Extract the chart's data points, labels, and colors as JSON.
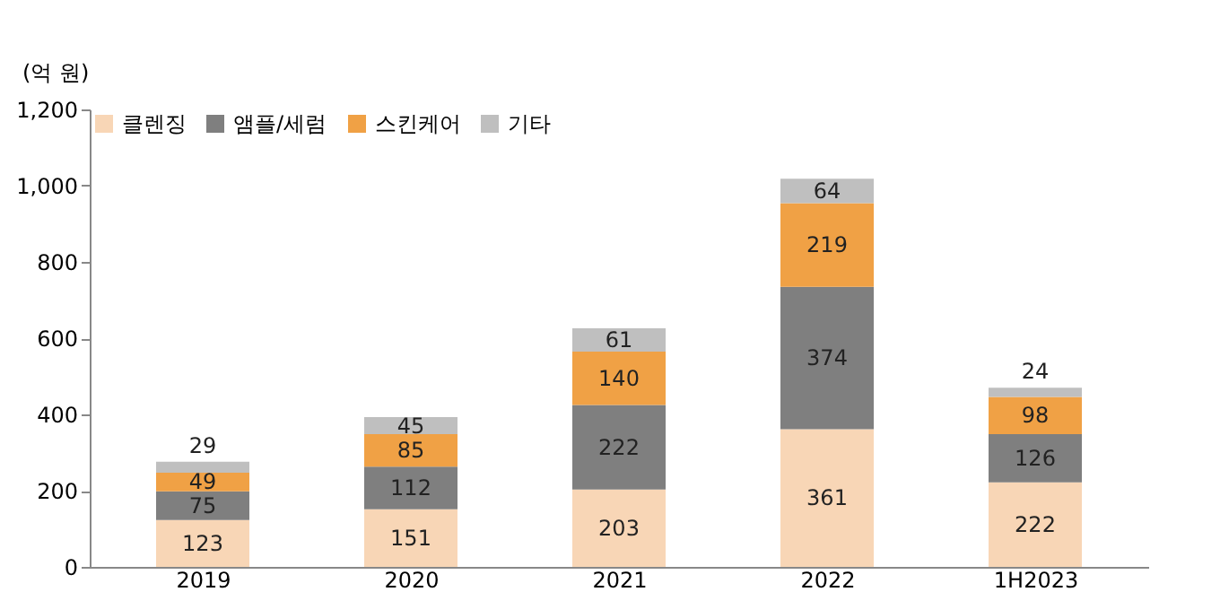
{
  "chart_data": {
    "type": "bar",
    "stacked": true,
    "ylabel": "(억 원)",
    "categories": [
      "2019",
      "2020",
      "2021",
      "2022",
      "1H2023"
    ],
    "series": [
      {
        "name": "클렌징",
        "color": "#f8d6b6",
        "values": [
          123,
          151,
          203,
          361,
          222
        ]
      },
      {
        "name": "앰플/세럼",
        "color": "#7f7f7f",
        "values": [
          75,
          112,
          222,
          374,
          126
        ]
      },
      {
        "name": "스킨케어",
        "color": "#f0a145",
        "values": [
          49,
          85,
          140,
          219,
          98
        ]
      },
      {
        "name": "기타",
        "color": "#bfbfbf",
        "values": [
          29,
          45,
          61,
          64,
          24
        ]
      }
    ],
    "ylim": [
      0,
      1200
    ],
    "yticks": [
      0,
      200,
      400,
      600,
      800,
      {
        "value": 1000,
        "label": "1,000"
      },
      {
        "value": 1200,
        "label": "1,200"
      }
    ],
    "data_labels": true,
    "grid": false,
    "legend": "top left"
  }
}
